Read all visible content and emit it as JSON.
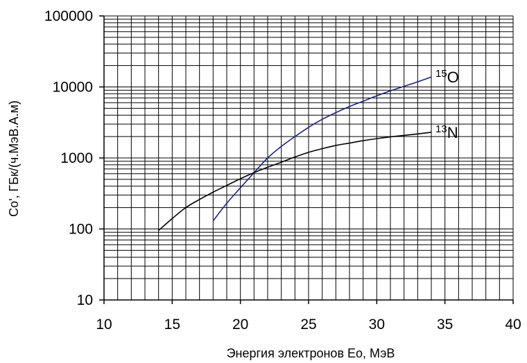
{
  "chart_data": {
    "type": "line",
    "title": "",
    "xlabel": "Энергия электронов Ео, МэВ",
    "ylabel": "Co', ГБк/(ч.МэВ.А.м)",
    "xlim": [
      10,
      40
    ],
    "ylim": [
      10,
      100000
    ],
    "yscale": "log",
    "grid": true,
    "x_ticks": [
      "10",
      "15",
      "20",
      "25",
      "30",
      "35",
      "40"
    ],
    "y_ticks": [
      "10",
      "100",
      "1000",
      "10000",
      "100000"
    ],
    "series": [
      {
        "name": "15O",
        "label_mass": "15",
        "label_symbol": "O",
        "color": "#1a237e",
        "x": [
          18,
          19,
          20,
          21,
          22,
          23,
          24,
          25,
          26,
          27,
          28,
          29,
          30,
          31,
          32,
          33,
          34
        ],
        "y": [
          130,
          230,
          380,
          620,
          1000,
          1450,
          2000,
          2700,
          3500,
          4350,
          5300,
          6300,
          7500,
          8800,
          10200,
          11800,
          13800
        ]
      },
      {
        "name": "13N",
        "label_mass": "13",
        "label_symbol": "N",
        "color": "#000000",
        "x": [
          14,
          15,
          16,
          17,
          18,
          19,
          20,
          21,
          22,
          23,
          24,
          25,
          26,
          27,
          28,
          29,
          30,
          31,
          32,
          33,
          34
        ],
        "y": [
          95,
          140,
          200,
          260,
          330,
          410,
          510,
          620,
          740,
          870,
          1030,
          1200,
          1350,
          1500,
          1620,
          1750,
          1870,
          1980,
          2080,
          2180,
          2300
        ]
      }
    ]
  }
}
